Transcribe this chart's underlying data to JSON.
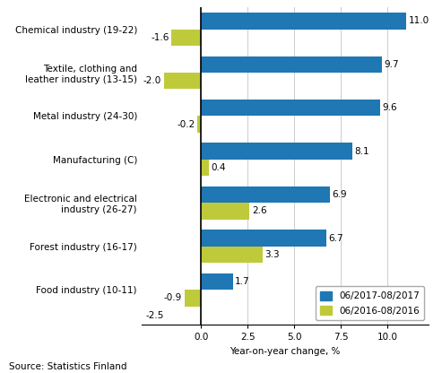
{
  "categories": [
    "Chemical industry (19-22)",
    "Textile, clothing and\nleather industry (13-15)",
    "Metal industry (24-30)",
    "Manufacturing (C)",
    "Electronic and electrical\nindustry (26-27)",
    "Forest industry (16-17)",
    "Food industry (10-11)"
  ],
  "values_2017": [
    11.0,
    9.7,
    9.6,
    8.1,
    6.9,
    6.7,
    1.7
  ],
  "values_2016": [
    -1.6,
    -2.0,
    -0.2,
    0.4,
    2.6,
    3.3,
    -0.9
  ],
  "color_2017": "#1f77b4",
  "color_2016": "#bfca3a",
  "legend_2017": "06/2017-08/2017",
  "legend_2016": "06/2016-08/2016",
  "xlabel": "Year-on-year change, %",
  "source": "Source: Statistics Finland",
  "xlim": [
    -3.2,
    12.2
  ],
  "xticks": [
    0.0,
    2.5,
    5.0,
    7.5,
    10.0
  ],
  "xtick_labels": [
    "0.0",
    "2.5",
    "5.0",
    "7.5",
    "10.0"
  ],
  "bar_height": 0.38,
  "label_fontsize": 7.5,
  "tick_fontsize": 7.5,
  "source_fontsize": 7.5
}
